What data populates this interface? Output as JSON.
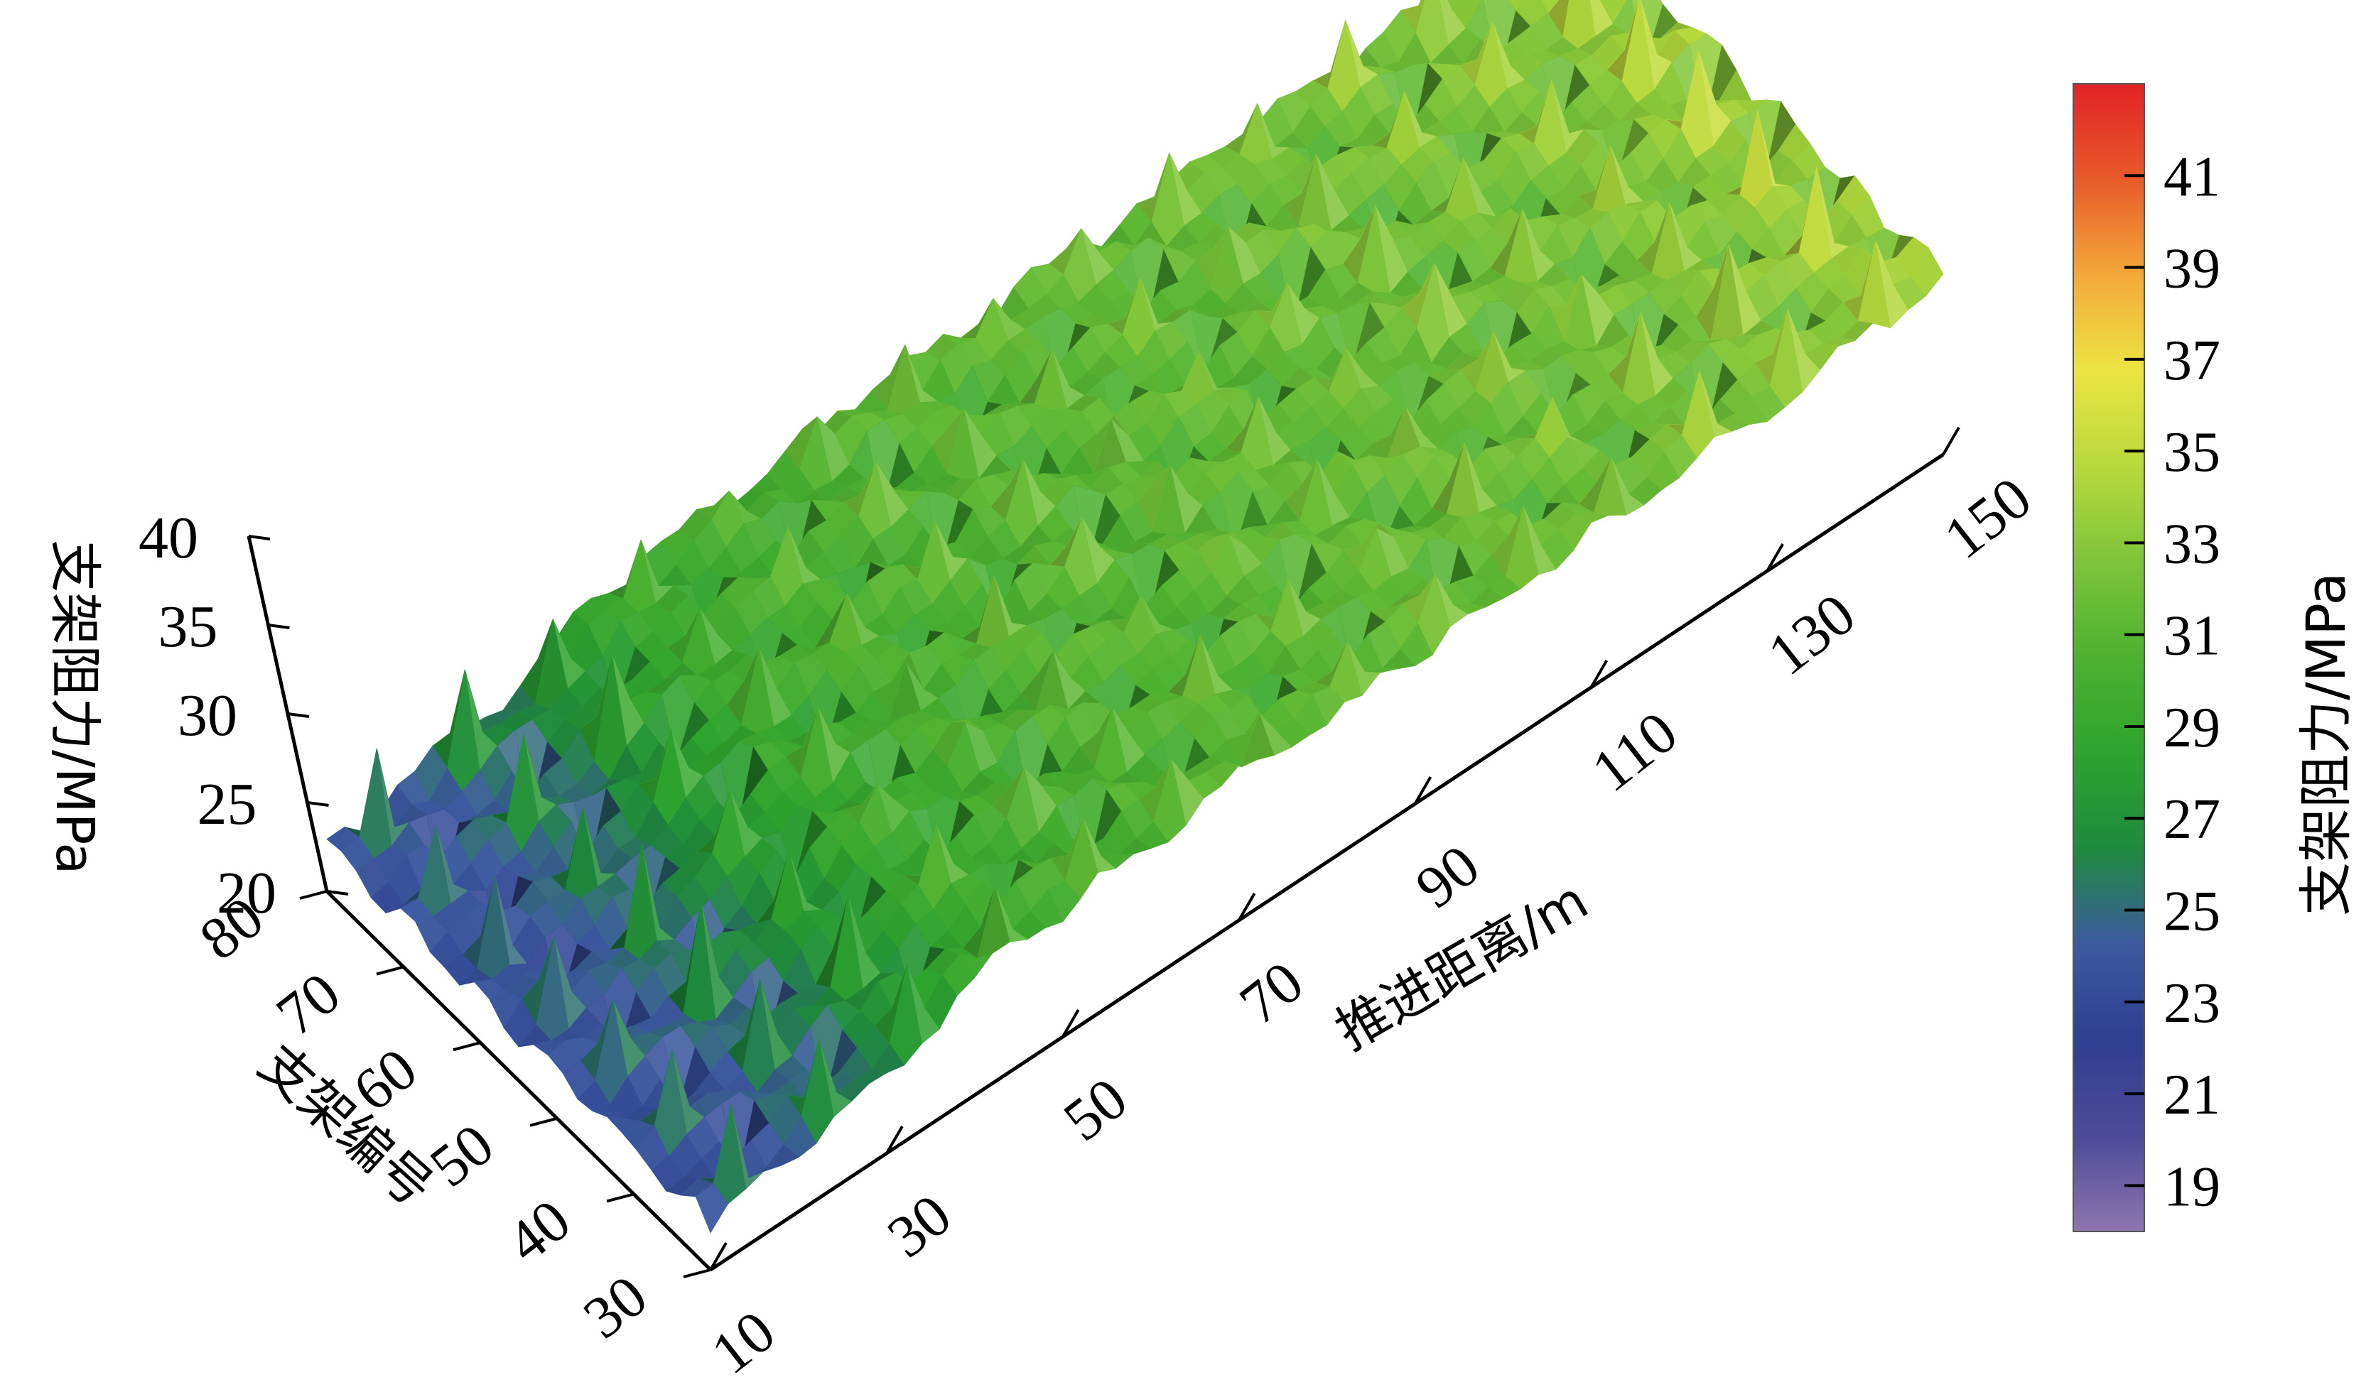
{
  "chart_data": {
    "type": "surface3d",
    "title": "",
    "xlabel": "推进距离/m",
    "ylabel": "支架编号",
    "zlabel": "支架阻力/MPa",
    "xticks": [
      "10",
      "30",
      "50",
      "70",
      "90",
      "110",
      "130",
      "150"
    ],
    "yticks": [
      "30",
      "40",
      "50",
      "60",
      "70",
      "80"
    ],
    "zticks": [
      "20",
      "25",
      "30",
      "35",
      "40"
    ],
    "xlim": [
      10,
      150
    ],
    "ylim": [
      30,
      80
    ],
    "zlim": [
      20,
      40
    ],
    "colorbar": {
      "label": "支架阻力/MPa",
      "ticks": [
        "19",
        "21",
        "23",
        "25",
        "27",
        "29",
        "31",
        "33",
        "35",
        "37",
        "39",
        "41"
      ],
      "range": [
        18,
        43
      ],
      "colors": [
        "#8e76b0",
        "#4d4a98",
        "#2f3f91",
        "#3d5aa0",
        "#1f8a3e",
        "#2ea32e",
        "#4cb130",
        "#7dc43a",
        "#b8d93c",
        "#ece443",
        "#f4a93a",
        "#e75a2a",
        "#e32227"
      ]
    },
    "surface_profile": {
      "x_values": [
        10,
        20,
        30,
        40,
        50,
        60,
        70,
        80,
        90,
        100,
        110,
        120,
        130,
        140,
        150
      ],
      "mean_resistance": [
        23.5,
        24.5,
        26,
        29,
        30,
        30.5,
        31,
        31,
        31.5,
        31.5,
        32,
        32,
        32.5,
        33,
        34
      ],
      "peak_resistance": [
        30,
        32,
        33,
        34,
        34,
        35,
        35,
        35,
        36,
        36,
        37,
        37,
        38,
        39,
        41
      ]
    }
  }
}
